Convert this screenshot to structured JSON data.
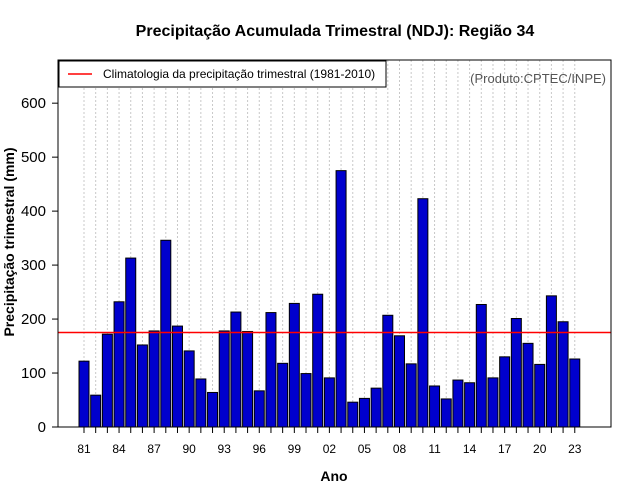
{
  "chart_data": {
    "type": "bar",
    "title": "Precipitação Acumulada Trimestral (NDJ): Região 34",
    "xlabel": "Ano",
    "ylabel": "Precipitação trimestral (mm)",
    "source": "(Produto:CPTEC/INPE)",
    "ylim": [
      0,
      680
    ],
    "yticks": [
      0,
      100,
      200,
      300,
      400,
      500,
      600
    ],
    "xtick_labels": [
      "81",
      "84",
      "87",
      "90",
      "93",
      "96",
      "99",
      "02",
      "05",
      "08",
      "11",
      "14",
      "17",
      "20",
      "23"
    ],
    "categories": [
      "1981",
      "1982",
      "1983",
      "1984",
      "1985",
      "1986",
      "1987",
      "1988",
      "1989",
      "1990",
      "1991",
      "1992",
      "1993",
      "1994",
      "1995",
      "1996",
      "1997",
      "1998",
      "1999",
      "2000",
      "2001",
      "2002",
      "2003",
      "2004",
      "2005",
      "2006",
      "2007",
      "2008",
      "2009",
      "2010",
      "2011",
      "2012",
      "2013",
      "2014",
      "2015",
      "2016",
      "2017",
      "2018",
      "2019",
      "2020",
      "2021",
      "2022",
      "2023"
    ],
    "values": [
      122,
      59,
      172,
      232,
      313,
      152,
      178,
      346,
      187,
      141,
      89,
      64,
      178,
      213,
      177,
      67,
      212,
      118,
      229,
      99,
      246,
      91,
      475,
      46,
      53,
      72,
      207,
      169,
      117,
      423,
      76,
      52,
      87,
      82,
      227,
      91,
      130,
      201,
      155,
      116,
      243,
      195,
      126
    ],
    "climatology": {
      "label": "Climatologia da precipitação trimestral (1981-2010)",
      "value": 175,
      "color": "#ff0000"
    },
    "bar_color": "#0000cd",
    "grid": "vertical dotted",
    "legend_position": "top-left"
  }
}
